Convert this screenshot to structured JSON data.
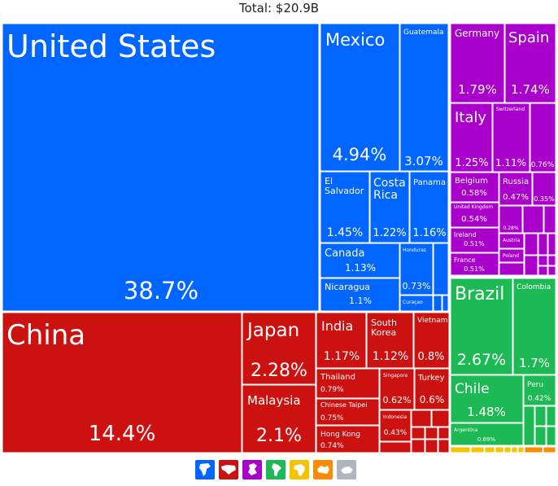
{
  "total_label": "Total: $20.9B",
  "chart_data": {
    "type": "treemap",
    "title": "Total: $20.9B",
    "unit": "% of total",
    "regions": [
      {
        "name": "North America",
        "color": "#0066ff",
        "items": [
          {
            "label": "United States",
            "value": "38.7%"
          },
          {
            "label": "Mexico",
            "value": "4.94%"
          },
          {
            "label": "Guatemala",
            "value": "3.07%"
          },
          {
            "label": "El Salvador",
            "value": "1.45%"
          },
          {
            "label": "Costa Rica",
            "value": "1.22%"
          },
          {
            "label": "Panama",
            "value": "1.16%"
          },
          {
            "label": "Canada",
            "value": "1.13%"
          },
          {
            "label": "Honduras",
            "value": "0.73%"
          },
          {
            "label": "Nicaragua",
            "value": "1.1%"
          },
          {
            "label": "Curaçao",
            "value": ""
          }
        ]
      },
      {
        "name": "Asia",
        "color": "#cc1111",
        "items": [
          {
            "label": "China",
            "value": "14.4%"
          },
          {
            "label": "Japan",
            "value": "2.28%"
          },
          {
            "label": "Malaysia",
            "value": "2.1%"
          },
          {
            "label": "India",
            "value": "1.17%"
          },
          {
            "label": "South Korea",
            "value": "1.12%"
          },
          {
            "label": "Vietnam",
            "value": "0.8%"
          },
          {
            "label": "Thailand",
            "value": "0.79%"
          },
          {
            "label": "Singapore",
            "value": "0.62%"
          },
          {
            "label": "Turkey",
            "value": "0.6%"
          },
          {
            "label": "Chinese Taipei",
            "value": "0.75%"
          },
          {
            "label": "Indonesia",
            "value": "0.43%"
          },
          {
            "label": "Hong Kong",
            "value": "0.74%"
          }
        ]
      },
      {
        "name": "Europe",
        "color": "#aa00cc",
        "items": [
          {
            "label": "Germany",
            "value": "1.79%"
          },
          {
            "label": "Spain",
            "value": "1.74%"
          },
          {
            "label": "Italy",
            "value": "1.25%"
          },
          {
            "label": "Switzerland",
            "value": "1.11%"
          },
          {
            "label": "",
            "value": "0.76%"
          },
          {
            "label": "Belgium",
            "value": "0.58%"
          },
          {
            "label": "Russia",
            "value": "0.47%"
          },
          {
            "label": "",
            "value": "0.35%"
          },
          {
            "label": "United Kingdom",
            "value": "0.54%"
          },
          {
            "label": "Ireland",
            "value": "0.51%"
          },
          {
            "label": "",
            "value": "0.28%"
          },
          {
            "label": "Austria",
            "value": ""
          },
          {
            "label": "France",
            "value": "0.51%"
          },
          {
            "label": "Poland",
            "value": ""
          }
        ]
      },
      {
        "name": "South America",
        "color": "#1db954",
        "items": [
          {
            "label": "Brazil",
            "value": "2.67%"
          },
          {
            "label": "Colombia",
            "value": "1.7%"
          },
          {
            "label": "Chile",
            "value": "1.48%"
          },
          {
            "label": "Peru",
            "value": "0.42%"
          },
          {
            "label": "Argentina",
            "value": "0.69%"
          }
        ]
      },
      {
        "name": "Africa",
        "color": "#f5c400",
        "items": []
      },
      {
        "name": "Oceania",
        "color": "#ff8c00",
        "items": []
      }
    ],
    "legend": [
      "North America",
      "Asia",
      "Europe",
      "South America",
      "Africa",
      "Oceania",
      "Antarctica"
    ]
  }
}
